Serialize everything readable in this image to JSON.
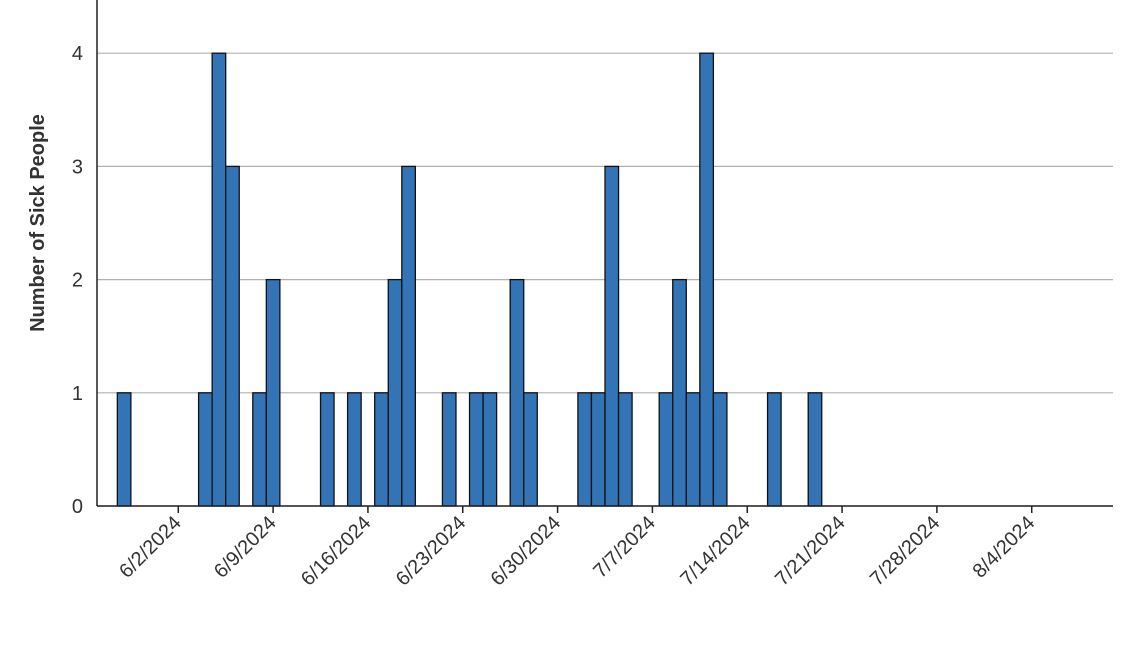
{
  "chart_data": {
    "type": "bar",
    "y_label": "Number of Sick People",
    "x": [
      "5/29/2024",
      "6/4/2024",
      "6/5/2024",
      "6/6/2024",
      "6/8/2024",
      "6/9/2024",
      "6/13/2024",
      "6/15/2024",
      "6/17/2024",
      "6/18/2024",
      "6/19/2024",
      "6/22/2024",
      "6/24/2024",
      "6/25/2024",
      "6/27/2024",
      "6/28/2024",
      "7/2/2024",
      "7/3/2024",
      "7/4/2024",
      "7/5/2024",
      "7/8/2024",
      "7/9/2024",
      "7/10/2024",
      "7/11/2024",
      "7/12/2024",
      "7/16/2024",
      "7/19/2024",
      "8/8/2024"
    ],
    "values": [
      1,
      1,
      4,
      3,
      1,
      2,
      1,
      1,
      1,
      2,
      3,
      1,
      1,
      1,
      2,
      1,
      1,
      1,
      3,
      1,
      1,
      2,
      1,
      4,
      1,
      1,
      1,
      0
    ],
    "color": "#3274b5",
    "xlim": [
      "5/27/2024",
      "8/10/2024"
    ],
    "xticks": [
      "6/2/2024",
      "6/9/2024",
      "6/16/2024",
      "6/23/2024",
      "6/30/2024",
      "7/7/2024",
      "7/14/2024",
      "7/21/2024",
      "7/28/2024",
      "8/4/2024"
    ],
    "ylim": [
      0,
      4.47
    ],
    "yticks": [
      0,
      1,
      2,
      3,
      4
    ],
    "grid": true
  }
}
